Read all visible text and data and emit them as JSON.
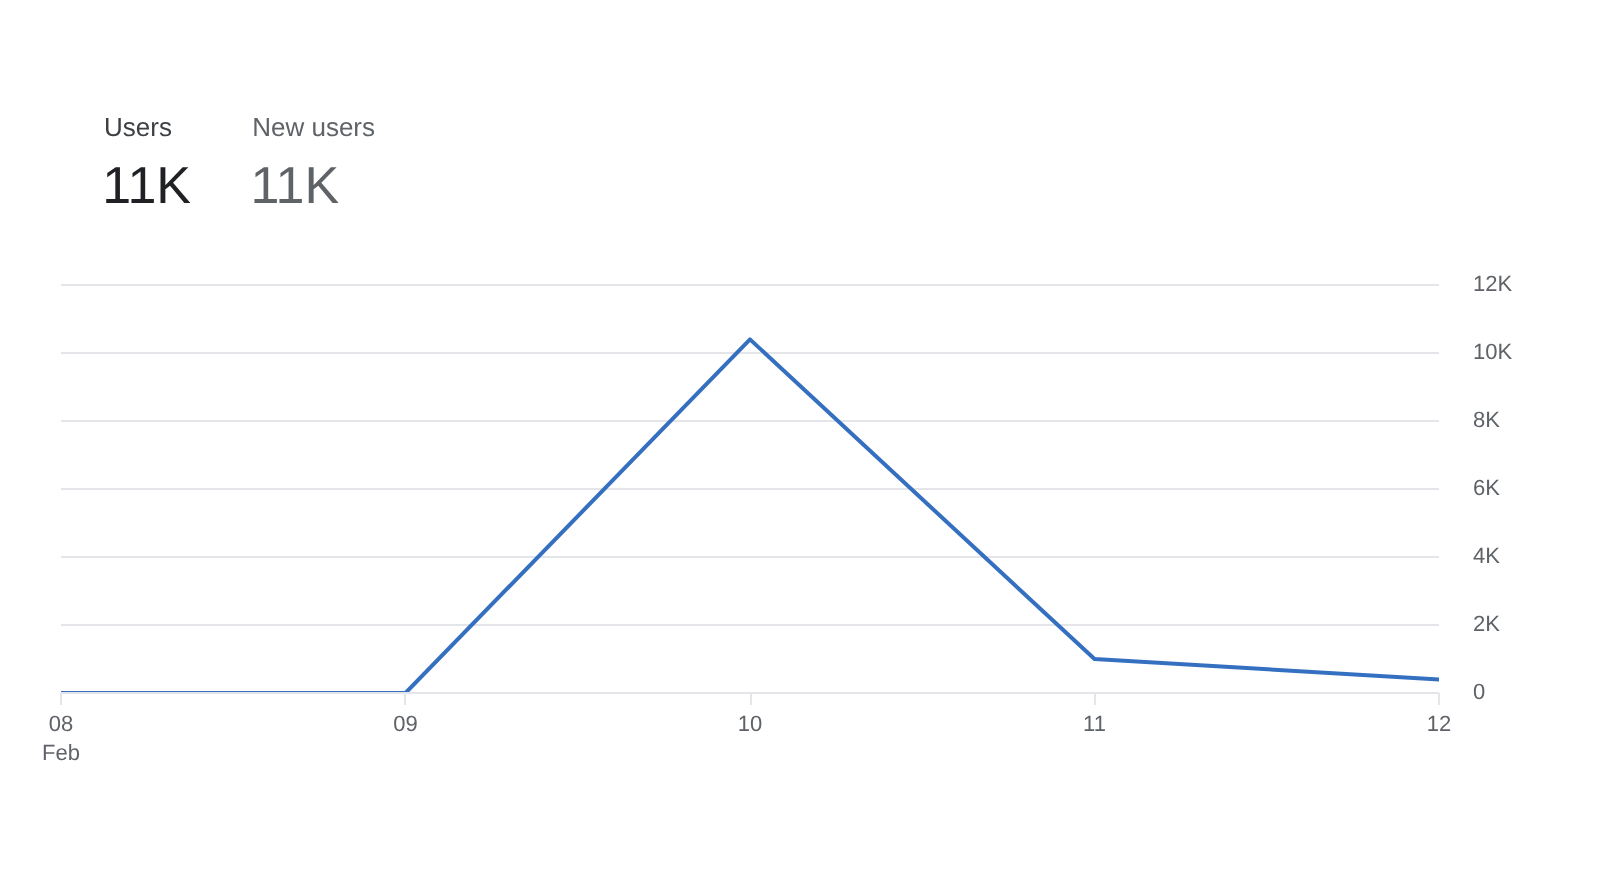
{
  "chart_data": {
    "type": "line",
    "annotations": [
      "Users",
      "11K",
      "New users",
      "11K"
    ],
    "categories": [
      "08\nFeb",
      "09",
      "10",
      "11",
      "12"
    ],
    "series": [
      {
        "color": "#3570c0",
        "values": [
          0,
          0,
          10400,
          1000,
          400
        ]
      }
    ],
    "ylim": [
      0,
      12000
    ],
    "yticks": [
      0,
      {
        "value": 2000,
        "label": "2K"
      },
      {
        "value": 4000,
        "label": "4K"
      },
      {
        "value": 6000,
        "label": "6K"
      },
      {
        "value": 8000,
        "label": "8K"
      },
      {
        "value": 10000,
        "label": "10K"
      },
      {
        "value": 12000,
        "label": "12K"
      }
    ],
    "grid": "y"
  }
}
